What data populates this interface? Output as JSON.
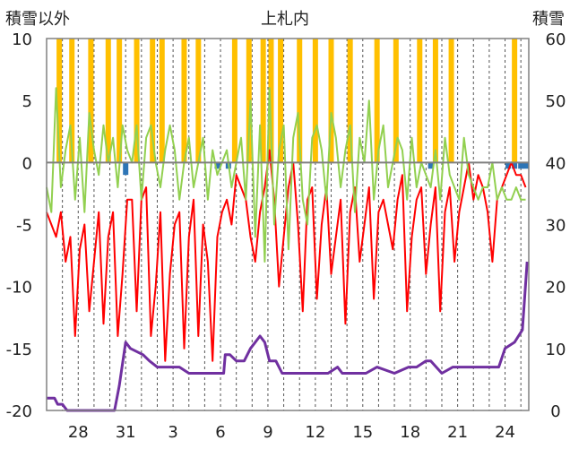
{
  "chart_data": {
    "type": "line",
    "title": "上札内",
    "left_axis_label": "積雪以外",
    "right_axis_label": "積雪",
    "left_ylim": [
      -20,
      10
    ],
    "right_ylim": [
      0,
      60
    ],
    "left_ticks": [
      "10",
      "5",
      "0",
      "-5",
      "-10",
      "-15",
      "-20"
    ],
    "right_ticks": [
      "60",
      "50",
      "40",
      "30",
      "20",
      "10",
      "0"
    ],
    "x_tick_labels": [
      "28",
      "31",
      "3",
      "6",
      "9",
      "12",
      "15",
      "18",
      "21",
      "24"
    ],
    "x_tick_days": [
      2,
      5,
      8,
      11,
      14,
      17,
      20,
      23,
      26,
      29
    ],
    "x_range_days": [
      0,
      30.5
    ],
    "grid": "vertical dashed daily",
    "series": [
      {
        "color": "#ff0000",
        "axis": "left",
        "x_days": [
          0,
          0.3,
          0.6,
          0.9,
          1.2,
          1.5,
          1.8,
          2.1,
          2.4,
          2.7,
          3.0,
          3.3,
          3.6,
          3.9,
          4.2,
          4.5,
          4.8,
          5.1,
          5.4,
          5.7,
          6.0,
          6.3,
          6.6,
          6.9,
          7.2,
          7.5,
          7.8,
          8.1,
          8.4,
          8.7,
          9.0,
          9.3,
          9.6,
          9.9,
          10.2,
          10.5,
          10.8,
          11.1,
          11.4,
          11.7,
          12.0,
          12.3,
          12.6,
          12.9,
          13.2,
          13.5,
          13.8,
          14.1,
          14.4,
          14.7,
          15.0,
          15.3,
          15.6,
          15.9,
          16.2,
          16.5,
          16.8,
          17.1,
          17.4,
          17.7,
          18.0,
          18.3,
          18.6,
          18.9,
          19.2,
          19.5,
          19.8,
          20.1,
          20.4,
          20.7,
          21.0,
          21.3,
          21.6,
          21.9,
          22.2,
          22.5,
          22.8,
          23.1,
          23.4,
          23.7,
          24.0,
          24.3,
          24.6,
          24.9,
          25.2,
          25.5,
          25.8,
          26.1,
          26.4,
          26.7,
          27.0,
          27.3,
          27.6,
          27.9,
          28.2,
          28.5,
          28.8,
          29.1,
          29.4,
          29.7,
          30.0,
          30.3
        ],
        "values": [
          -4,
          -5,
          -6,
          -4,
          -8,
          -6,
          -14,
          -7,
          -5,
          -12,
          -8,
          -4,
          -13,
          -6,
          -4,
          -14,
          -9,
          -3,
          -3,
          -12,
          -3,
          -2,
          -14,
          -10,
          -4,
          -16,
          -9,
          -5,
          -4,
          -15,
          -6,
          -3,
          -14,
          -5,
          -8,
          -16,
          -6,
          -4,
          -3,
          -5,
          -1,
          -2,
          -3,
          -6,
          -8,
          -4,
          -2,
          1,
          -3,
          -10,
          -6,
          -2,
          0,
          -5,
          -12,
          -3,
          -2,
          -11,
          -5,
          -2,
          -9,
          -6,
          -3,
          -13,
          -4,
          -2,
          -8,
          -5,
          -2,
          -11,
          -4,
          -3,
          -5,
          -7,
          -3,
          -1,
          -12,
          -6,
          -3,
          -2,
          -9,
          -5,
          -2,
          -12,
          -4,
          -2,
          -8,
          -4,
          -2,
          0,
          -3,
          -1,
          -2,
          -4,
          -8,
          -3,
          -2,
          -1,
          0,
          -1,
          -1,
          -2
        ]
      },
      {
        "color": "#92d050",
        "axis": "left",
        "x_days": [
          0,
          0.3,
          0.6,
          0.9,
          1.2,
          1.5,
          1.8,
          2.1,
          2.4,
          2.7,
          3.0,
          3.3,
          3.6,
          3.9,
          4.2,
          4.5,
          4.8,
          5.1,
          5.4,
          5.7,
          6.0,
          6.3,
          6.6,
          6.9,
          7.2,
          7.5,
          7.8,
          8.1,
          8.4,
          8.7,
          9.0,
          9.3,
          9.6,
          9.9,
          10.2,
          10.5,
          10.8,
          11.1,
          11.4,
          11.7,
          12.0,
          12.3,
          12.6,
          12.9,
          13.2,
          13.5,
          13.8,
          14.1,
          14.4,
          14.7,
          15.0,
          15.3,
          15.6,
          15.9,
          16.2,
          16.5,
          16.8,
          17.1,
          17.4,
          17.7,
          18.0,
          18.3,
          18.6,
          18.9,
          19.2,
          19.5,
          19.8,
          20.1,
          20.4,
          20.7,
          21.0,
          21.3,
          21.6,
          21.9,
          22.2,
          22.5,
          22.8,
          23.1,
          23.4,
          23.7,
          24.0,
          24.3,
          24.6,
          24.9,
          25.2,
          25.5,
          25.8,
          26.1,
          26.4,
          26.7,
          27.0,
          27.3,
          27.6,
          27.9,
          28.2,
          28.5,
          28.8,
          29.1,
          29.4,
          29.7,
          30.0,
          30.3
        ],
        "values": [
          -2,
          -4,
          6,
          -2,
          1,
          3,
          -3,
          2,
          -4,
          4,
          1,
          -1,
          3,
          0,
          2,
          -2,
          3,
          1,
          0,
          3,
          -3,
          2,
          3,
          0,
          -2,
          1,
          3,
          1,
          -3,
          0,
          2,
          -2,
          0,
          2,
          -3,
          1,
          -1,
          0,
          1,
          -2,
          0,
          2,
          -3,
          5,
          -6,
          3,
          -8,
          6,
          -5,
          1,
          3,
          -7,
          2,
          4,
          -3,
          -5,
          2,
          3,
          1,
          -3,
          4,
          2,
          -2,
          1,
          3,
          -4,
          2,
          0,
          5,
          -3,
          1,
          3,
          -2,
          0,
          2,
          1,
          -3,
          2,
          -2,
          0,
          -1,
          -2,
          1,
          -3,
          2,
          -1,
          -2,
          -3,
          2,
          -1,
          -2,
          -3,
          -2,
          -2,
          0,
          -3,
          -2,
          -3,
          -3,
          -2,
          -3,
          -3
        ]
      },
      {
        "color": "#7030a0",
        "axis": "right",
        "x_days": [
          0,
          0.5,
          0.7,
          1.0,
          1.3,
          3.0,
          4.3,
          4.6,
          5.0,
          5.3,
          6.1,
          6.5,
          7.0,
          8.4,
          9.0,
          10.0,
          10.8,
          11.2,
          11.3,
          11.6,
          12.0,
          12.5,
          12.9,
          13.2,
          13.5,
          13.8,
          14.1,
          14.5,
          14.9,
          15.4,
          15.8,
          16.3,
          17.3,
          17.8,
          18.4,
          18.7,
          19.5,
          20.2,
          20.9,
          22.0,
          22.9,
          23.4,
          24.0,
          24.3,
          25.0,
          25.7,
          26.3,
          27.0,
          28.6,
          29.0,
          29.6,
          30.1,
          30.4
        ],
        "values": [
          2,
          2,
          1,
          1,
          0,
          0,
          0,
          4,
          11,
          10,
          9,
          8,
          7,
          7,
          6,
          6,
          6,
          6,
          9,
          9,
          8,
          8,
          10,
          11,
          12,
          11,
          8,
          8,
          6,
          6,
          6,
          6,
          6,
          6,
          7,
          6,
          6,
          6,
          7,
          6,
          7,
          7,
          8,
          8,
          6,
          7,
          7,
          7,
          7,
          10,
          11,
          13,
          24
        ]
      }
    ],
    "bars": [
      {
        "color": "#ffc000",
        "axis": "left",
        "x_days": [
          0.8,
          1.6,
          2.8,
          3.9,
          4.6,
          5.7,
          6.7,
          7.3,
          8.7,
          9.6,
          11.9,
          12.8,
          13.7,
          14.2,
          14.8,
          16.0,
          17.0,
          18.0,
          19.2,
          20.9,
          22.1,
          23.6,
          24.6,
          25.6,
          29.6
        ],
        "values": [
          10,
          10,
          10,
          10,
          10,
          10,
          10,
          10,
          10,
          10,
          10,
          10,
          10,
          10,
          10,
          10,
          10,
          10,
          10,
          10,
          10,
          10,
          10,
          10,
          10
        ]
      },
      {
        "color": "#2e75b6",
        "axis": "left",
        "x_days": [
          5.0,
          10.8,
          11.5,
          24.3,
          29.2,
          29.6,
          30.0,
          30.3
        ],
        "values": [
          -1,
          -0.5,
          -0.5,
          -0.5,
          -0.5,
          -0.5,
          -0.5,
          -0.5
        ]
      }
    ]
  }
}
